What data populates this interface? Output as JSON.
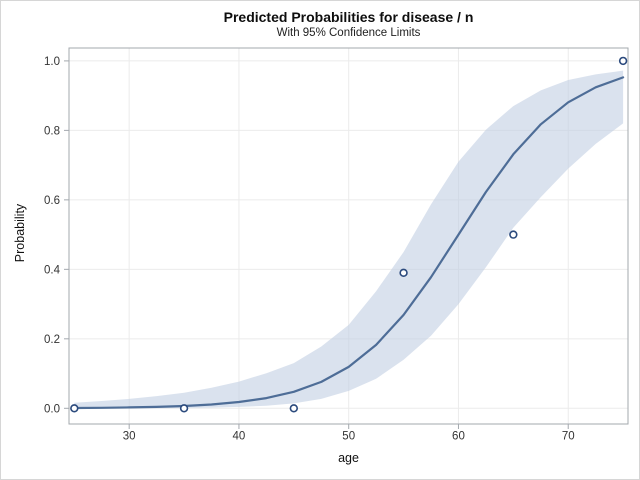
{
  "chart_data": {
    "type": "line",
    "title": "Predicted Probabilities for disease / n",
    "subtitle": "With 95% Confidence Limits",
    "xlabel": "age",
    "ylabel": "Probability",
    "xlim": [
      25,
      75
    ],
    "ylim": [
      0.0,
      1.0
    ],
    "x_ticks": [
      30,
      40,
      50,
      60,
      70
    ],
    "y_ticks": [
      0.0,
      0.2,
      0.4,
      0.6,
      0.8,
      1.0
    ],
    "grid": true,
    "legend_position": "none",
    "series": [
      {
        "name": "95% confidence band",
        "type": "band",
        "x": [
          25,
          27.5,
          30,
          32.5,
          35,
          37.5,
          40,
          42.5,
          45,
          47.5,
          50,
          52.5,
          55,
          57.5,
          60,
          62.5,
          65,
          67.5,
          70,
          72.5,
          75
        ],
        "upper": [
          0.016,
          0.021,
          0.027,
          0.035,
          0.045,
          0.059,
          0.077,
          0.101,
          0.13,
          0.178,
          0.24,
          0.337,
          0.45,
          0.587,
          0.71,
          0.802,
          0.87,
          0.915,
          0.945,
          0.961,
          0.972
        ],
        "lower": [
          4e-05,
          9e-05,
          0.0002,
          0.0004,
          0.0009,
          0.0019,
          0.004,
          0.0075,
          0.014,
          0.027,
          0.05,
          0.085,
          0.14,
          0.209,
          0.3,
          0.406,
          0.52,
          0.608,
          0.69,
          0.761,
          0.82
        ]
      },
      {
        "name": "predicted probability curve",
        "type": "line",
        "x": [
          25,
          27.5,
          30,
          32.5,
          35,
          37.5,
          40,
          42.5,
          45,
          47.5,
          50,
          52.5,
          55,
          57.5,
          60,
          62.5,
          65,
          67.5,
          70,
          72.5,
          75
        ],
        "y": [
          0.0009,
          0.0015,
          0.0025,
          0.0041,
          0.0067,
          0.011,
          0.018,
          0.0293,
          0.0474,
          0.0759,
          0.1192,
          0.1824,
          0.2689,
          0.3775,
          0.5,
          0.6225,
          0.7311,
          0.8176,
          0.8808,
          0.9241,
          0.9526
        ]
      },
      {
        "name": "observed proportions",
        "type": "scatter",
        "points": [
          [
            25,
            0.0
          ],
          [
            35,
            0.0
          ],
          [
            45,
            0.0
          ],
          [
            55,
            0.39
          ],
          [
            65,
            0.5
          ],
          [
            75,
            1.0
          ]
        ]
      }
    ],
    "colors": {
      "background": "#ffffff",
      "figure_border": "#d6d6d6",
      "band_fill": "#c2cfe3",
      "curve": "#4e6d97",
      "marker": "#2b4a7d",
      "grid": "#ebebeb",
      "axis": "#a3a8ae",
      "tick_text": "#333333"
    }
  }
}
